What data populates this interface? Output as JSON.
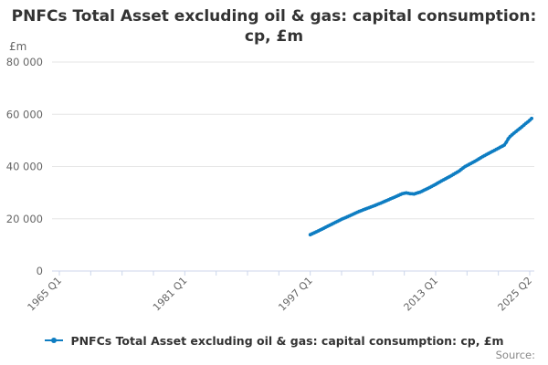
{
  "title": {
    "line1": "PNFCs Total Asset excluding oil & gas: capital consumption:",
    "line2": "cp, £m"
  },
  "y_unit": "£m",
  "source_label": "Source:",
  "legend": {
    "label": "PNFCs Total Asset excluding oil & gas: capital consumption: cp, £m"
  },
  "colors": {
    "line": "#0e7dc2",
    "grid": "#e6e6e6",
    "axis": "#ccd6eb",
    "tick_label": "#666666",
    "title": "#333333"
  },
  "chart_data": {
    "type": "line",
    "title": "PNFCs Total Asset excluding oil & gas: capital consumption: cp, £m",
    "xlabel": "",
    "ylabel": "£m",
    "ylim": [
      0,
      80000
    ],
    "yticks": [
      0,
      20000,
      40000,
      60000,
      80000
    ],
    "ytick_labels": [
      "0",
      "20 000",
      "40 000",
      "60 000",
      "80 000"
    ],
    "grid": "horizontal",
    "legend_position": "bottom",
    "x_axis": {
      "start": "1965 Q1",
      "end": "2025 Q2",
      "total_quarters": 241,
      "tick_every_quarters": 16,
      "labels": [
        {
          "pos": 0,
          "text": "1965 Q1"
        },
        {
          "pos": 64,
          "text": "1981 Q1"
        },
        {
          "pos": 128,
          "text": "1997 Q1"
        },
        {
          "pos": 192,
          "text": "2013 Q1"
        },
        {
          "pos": 240,
          "text": "2025 Q2"
        }
      ]
    },
    "series": [
      {
        "name": "PNFCs Total Asset excluding oil & gas: capital consumption: cp, £m",
        "start": "1997 Q1",
        "start_quarter_offset": 128,
        "frequency": "quarterly",
        "values": [
          13900,
          14250,
          14600,
          14950,
          15300,
          15675,
          16050,
          16425,
          16800,
          17175,
          17550,
          17925,
          18300,
          18675,
          19050,
          19425,
          19800,
          20125,
          20450,
          20775,
          21100,
          21450,
          21800,
          22150,
          22500,
          22800,
          23100,
          23400,
          23700,
          23975,
          24250,
          24525,
          24800,
          25100,
          25400,
          25700,
          26000,
          26325,
          26650,
          26975,
          27300,
          27625,
          27950,
          28275,
          28600,
          28930,
          29270,
          29600,
          29750,
          29900,
          29750,
          29600,
          29550,
          29500,
          29730,
          29960,
          30200,
          30550,
          30900,
          31250,
          31600,
          32000,
          32400,
          32800,
          33200,
          33630,
          34050,
          34480,
          34900,
          35300,
          35700,
          36100,
          36500,
          36950,
          37400,
          37850,
          38300,
          38870,
          39430,
          40000,
          40400,
          40800,
          41200,
          41600,
          42000,
          42450,
          42900,
          43350,
          43800,
          44200,
          44600,
          45000,
          45400,
          45800,
          46200,
          46600,
          47000,
          47400,
          47800,
          48200,
          49300,
          50600,
          51500,
          52150,
          52800,
          53400,
          54000,
          54600,
          55200,
          55850,
          56500,
          57100,
          57700,
          58400
        ]
      }
    ]
  }
}
